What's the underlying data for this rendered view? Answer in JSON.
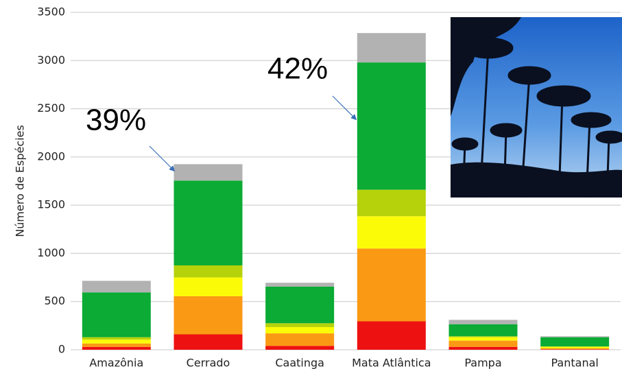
{
  "chart_data": {
    "type": "stacked_bar",
    "y_label": "Número de Espécies",
    "categories": [
      "Amazônia",
      "Cerrado",
      "Caatinga",
      "Mata Atlântica",
      "Pampa",
      "Pantanal"
    ],
    "series": [
      {
        "color": "#ee1111",
        "values": [
          30,
          160,
          40,
          295,
          30,
          5
        ]
      },
      {
        "color": "#fa9a14",
        "values": [
          35,
          395,
          130,
          755,
          65,
          10
        ]
      },
      {
        "color": "#fbfb08",
        "values": [
          40,
          195,
          65,
          335,
          35,
          15
        ]
      },
      {
        "color": "#b6d20a",
        "values": [
          25,
          125,
          40,
          275,
          10,
          5
        ]
      },
      {
        "color": "#0bab35",
        "values": [
          465,
          880,
          380,
          1320,
          125,
          95
        ]
      },
      {
        "color": "#b2b2b2",
        "values": [
          120,
          170,
          40,
          305,
          45,
          10
        ]
      }
    ],
    "annotations": [
      "39%",
      "42%"
    ],
    "ylim": [
      0,
      3500
    ],
    "yticks": [
      0,
      500,
      1000,
      1500,
      2000,
      2500,
      3000,
      3500
    ],
    "grid": true
  }
}
